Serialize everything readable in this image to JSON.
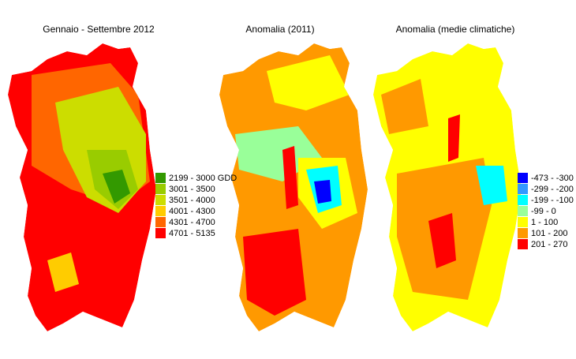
{
  "maps": [
    {
      "title": "Gennaio - Settembre 2012"
    },
    {
      "title": "Anomalia (2011)"
    },
    {
      "title": "Anomalia (medie climatiche)"
    }
  ],
  "legends": [
    {
      "items": [
        {
          "label": "2199 - 3000 GDD",
          "color": "#339900"
        },
        {
          "label": "3001 - 3500",
          "color": "#99cc00"
        },
        {
          "label": "3501 - 4000",
          "color": "#ccdd00"
        },
        {
          "label": "4001 - 4300",
          "color": "#ffcc00"
        },
        {
          "label": "4301 - 4700",
          "color": "#ff6600"
        },
        {
          "label": "4701 - 5135",
          "color": "#ff0000"
        }
      ]
    },
    {
      "items": [
        {
          "label": "-473 - -300",
          "color": "#0000ff"
        },
        {
          "label": "-299 - -200",
          "color": "#3399ff"
        },
        {
          "label": "-199 - -100",
          "color": "#00ffff"
        },
        {
          "label": "-99 - 0",
          "color": "#99ff99"
        },
        {
          "label": "1 - 100",
          "color": "#ffff00"
        },
        {
          "label": "101 - 200",
          "color": "#ff9900"
        },
        {
          "label": "201 - 270",
          "color": "#ff0000"
        }
      ]
    }
  ]
}
